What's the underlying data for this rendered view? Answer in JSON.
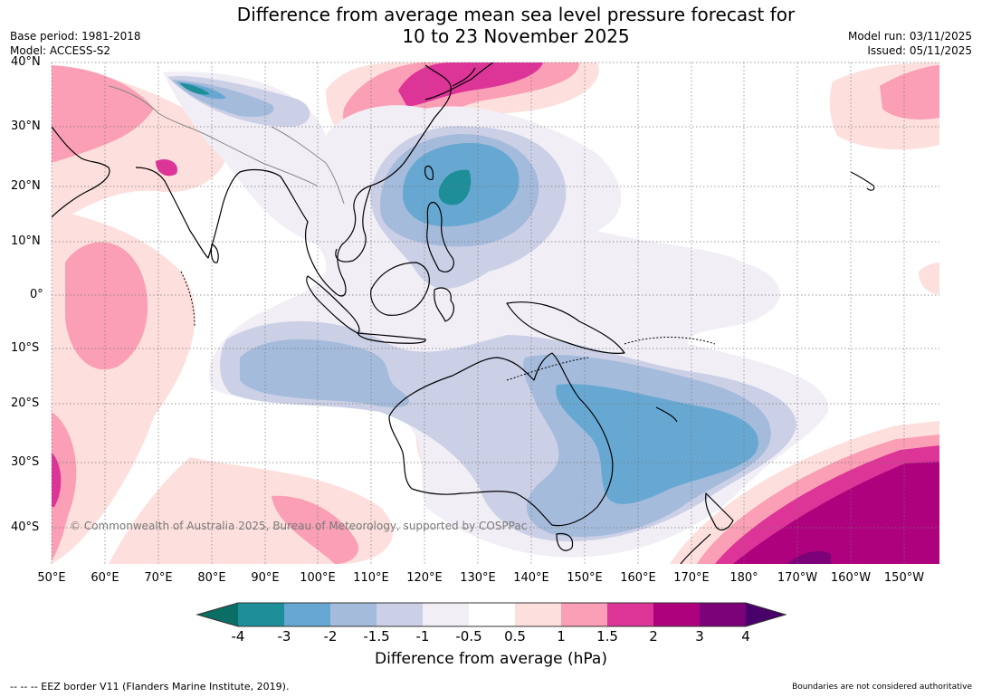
{
  "title_line1": "Difference from average mean sea level pressure forecast for",
  "title_line2": "10 to 23 November 2025",
  "base_period": "Base period: 1981-2018",
  "model": "Model: ACCESS-S2",
  "model_run": "Model run: 03/11/2025",
  "issued": "Issued: 05/11/2025",
  "lat_labels": [
    "40°N",
    "30°N",
    "20°N",
    "10°N",
    "0°",
    "10°S",
    "20°S",
    "30°S",
    "40°S"
  ],
  "lon_labels": [
    "50°E",
    "60°E",
    "70°E",
    "80°E",
    "90°E",
    "100°E",
    "110°E",
    "120°E",
    "130°E",
    "140°E",
    "150°E",
    "160°E",
    "170°E",
    "180°",
    "170°W",
    "160°W",
    "150°W"
  ],
  "credit": "© Commonwealth of Australia 2025, Bureau of Meteorology, supported by COSPPac",
  "colorbar": {
    "ticks": [
      "-4",
      "-3",
      "-2",
      "-1.5",
      "-1",
      "-0.5",
      "0.5",
      "1",
      "1.5",
      "2",
      "3",
      "4"
    ],
    "colors": [
      "#0b6e64",
      "#1e8f98",
      "#67a8d2",
      "#a5bbdb",
      "#ccd0e6",
      "#f1eef6",
      "#ffffff",
      "#fde0dd",
      "#fa9fb5",
      "#dd3497",
      "#ae017e",
      "#7a0177",
      "#49006a"
    ],
    "label": "Difference from average (hPa)"
  },
  "footer_left": "--  --  -- EEZ border V11 (Flanders Marine Institute, 2019).",
  "footer_right": "Boundaries are not considered authoritative"
}
